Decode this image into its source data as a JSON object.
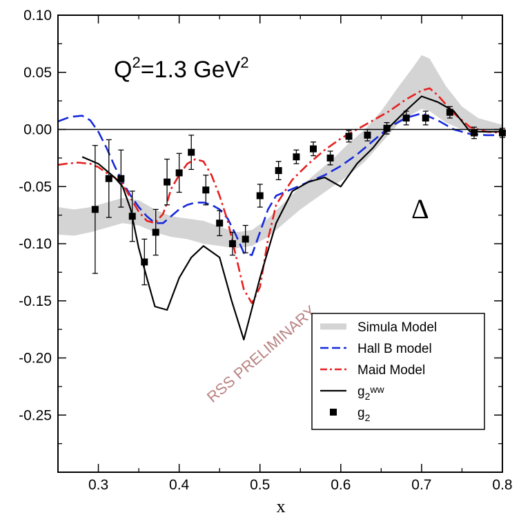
{
  "chart_data": {
    "type": "line",
    "title": "",
    "xlabel": "x",
    "ylabel": "",
    "xlim": [
      0.25,
      0.8
    ],
    "ylim": [
      -0.3,
      0.1
    ],
    "grid": false,
    "legend_position": "bottom-right",
    "x_ticks": [
      {
        "value": 0.3,
        "label": "0.3"
      },
      {
        "value": 0.4,
        "label": "0.4"
      },
      {
        "value": 0.5,
        "label": "0.5"
      },
      {
        "value": 0.6,
        "label": "0.6"
      },
      {
        "value": 0.7,
        "label": "0.7"
      },
      {
        "value": 0.8,
        "label": "0.8"
      }
    ],
    "y_ticks": [
      {
        "value": 0.1,
        "label": "0.10"
      },
      {
        "value": 0.05,
        "label": "0.05"
      },
      {
        "value": 0.0,
        "label": "0.00"
      },
      {
        "value": -0.05,
        "label": "-0.05"
      },
      {
        "value": -0.1,
        "label": "-0.10"
      },
      {
        "value": -0.15,
        "label": "-0.15"
      },
      {
        "value": -0.2,
        "label": "-0.20"
      },
      {
        "value": -0.25,
        "label": "-0.25"
      }
    ],
    "annotations": {
      "q2_main": "Q",
      "q2_sup1": "2",
      "q2_mid": "=1.3 GeV",
      "q2_sup2": "2",
      "delta": "Δ",
      "watermark": "RSS PRELIMINARY"
    },
    "colors": {
      "band": "#d4d4d4",
      "hallb": "#1428dc",
      "maid": "#e61e1e",
      "ww": "#000000",
      "data": "#000000",
      "watermark": "#b98282"
    },
    "band": {
      "name": "Simula Model",
      "x": [
        0.25,
        0.27,
        0.29,
        0.31,
        0.33,
        0.35,
        0.37,
        0.39,
        0.41,
        0.43,
        0.45,
        0.47,
        0.49,
        0.51,
        0.53,
        0.55,
        0.57,
        0.59,
        0.61,
        0.63,
        0.65,
        0.67,
        0.69,
        0.7,
        0.71,
        0.73,
        0.75,
        0.77,
        0.8
      ],
      "upper": [
        -0.068,
        -0.07,
        -0.068,
        -0.064,
        -0.06,
        -0.062,
        -0.07,
        -0.076,
        -0.078,
        -0.08,
        -0.085,
        -0.09,
        -0.088,
        -0.078,
        -0.064,
        -0.05,
        -0.038,
        -0.026,
        -0.012,
        0.0,
        0.016,
        0.036,
        0.055,
        0.065,
        0.062,
        0.038,
        0.02,
        0.01,
        0.004
      ],
      "lower": [
        -0.092,
        -0.093,
        -0.09,
        -0.086,
        -0.082,
        -0.084,
        -0.09,
        -0.094,
        -0.096,
        -0.1,
        -0.102,
        -0.104,
        -0.102,
        -0.094,
        -0.082,
        -0.07,
        -0.06,
        -0.05,
        -0.04,
        -0.028,
        -0.012,
        0.004,
        0.014,
        0.018,
        0.016,
        0.006,
        0.0,
        -0.002,
        -0.003
      ]
    },
    "series": [
      {
        "name": "Hall B model",
        "x": [
          0.25,
          0.265,
          0.28,
          0.29,
          0.3,
          0.31,
          0.32,
          0.33,
          0.34,
          0.35,
          0.36,
          0.37,
          0.38,
          0.39,
          0.4,
          0.41,
          0.42,
          0.43,
          0.44,
          0.45,
          0.46,
          0.47,
          0.48,
          0.49,
          0.5,
          0.51,
          0.52,
          0.54,
          0.56,
          0.58,
          0.6,
          0.62,
          0.64,
          0.66,
          0.68,
          0.7,
          0.72,
          0.74,
          0.76,
          0.78,
          0.8
        ],
        "y": [
          0.007,
          0.011,
          0.012,
          0.008,
          -0.002,
          -0.016,
          -0.032,
          -0.046,
          -0.058,
          -0.068,
          -0.076,
          -0.082,
          -0.082,
          -0.076,
          -0.07,
          -0.066,
          -0.064,
          -0.064,
          -0.066,
          -0.07,
          -0.078,
          -0.092,
          -0.108,
          -0.11,
          -0.09,
          -0.07,
          -0.058,
          -0.052,
          -0.046,
          -0.04,
          -0.032,
          -0.022,
          -0.01,
          0.002,
          0.01,
          0.014,
          0.008,
          0.0,
          -0.004,
          -0.005,
          -0.005
        ]
      },
      {
        "name": "Maid Model",
        "x": [
          0.25,
          0.26,
          0.275,
          0.29,
          0.3,
          0.31,
          0.32,
          0.33,
          0.34,
          0.35,
          0.36,
          0.37,
          0.38,
          0.385,
          0.39,
          0.4,
          0.41,
          0.42,
          0.43,
          0.44,
          0.45,
          0.46,
          0.47,
          0.48,
          0.49,
          0.5,
          0.51,
          0.52,
          0.54,
          0.56,
          0.58,
          0.6,
          0.62,
          0.64,
          0.66,
          0.68,
          0.7,
          0.71,
          0.72,
          0.74,
          0.76,
          0.78,
          0.8
        ],
        "y": [
          -0.031,
          -0.03,
          -0.029,
          -0.03,
          -0.033,
          -0.038,
          -0.042,
          -0.048,
          -0.06,
          -0.072,
          -0.08,
          -0.082,
          -0.074,
          -0.064,
          -0.052,
          -0.04,
          -0.03,
          -0.026,
          -0.028,
          -0.04,
          -0.058,
          -0.08,
          -0.11,
          -0.14,
          -0.152,
          -0.138,
          -0.096,
          -0.066,
          -0.044,
          -0.03,
          -0.018,
          -0.008,
          0.0,
          0.008,
          0.016,
          0.026,
          0.034,
          0.036,
          0.03,
          0.014,
          0.002,
          -0.002,
          -0.003
        ]
      },
      {
        "name": "g2ww",
        "x": [
          0.28,
          0.3,
          0.31,
          0.32,
          0.33,
          0.34,
          0.35,
          0.36,
          0.37,
          0.385,
          0.4,
          0.415,
          0.43,
          0.45,
          0.465,
          0.48,
          0.5,
          0.52,
          0.54,
          0.56,
          0.58,
          0.6,
          0.62,
          0.64,
          0.66,
          0.68,
          0.7,
          0.72,
          0.74,
          0.76,
          0.78,
          0.8
        ],
        "y": [
          -0.024,
          -0.03,
          -0.036,
          -0.042,
          -0.05,
          -0.07,
          -0.104,
          -0.13,
          -0.155,
          -0.158,
          -0.13,
          -0.112,
          -0.102,
          -0.112,
          -0.15,
          -0.184,
          -0.13,
          -0.082,
          -0.054,
          -0.046,
          -0.042,
          -0.05,
          -0.03,
          -0.016,
          0.002,
          0.016,
          0.029,
          0.024,
          0.016,
          -0.002,
          -0.002,
          -0.002
        ]
      }
    ],
    "data_points": {
      "name": "g2",
      "x": [
        0.296,
        0.313,
        0.328,
        0.342,
        0.357,
        0.371,
        0.385,
        0.4,
        0.415,
        0.433,
        0.45,
        0.466,
        0.482,
        0.5,
        0.523,
        0.545,
        0.566,
        0.587,
        0.61,
        0.633,
        0.657,
        0.681,
        0.705,
        0.735,
        0.765,
        0.8
      ],
      "y": [
        -0.07,
        -0.043,
        -0.043,
        -0.076,
        -0.116,
        -0.09,
        -0.046,
        -0.038,
        -0.02,
        -0.053,
        -0.082,
        -0.1,
        -0.096,
        -0.058,
        -0.036,
        -0.024,
        -0.017,
        -0.025,
        -0.006,
        -0.005,
        0.001,
        0.01,
        0.01,
        0.015,
        -0.003,
        -0.003
      ],
      "err": [
        0.056,
        0.034,
        0.025,
        0.022,
        0.02,
        0.02,
        0.02,
        0.017,
        0.015,
        0.013,
        0.011,
        0.01,
        0.012,
        0.01,
        0.008,
        0.006,
        0.006,
        0.006,
        0.005,
        0.005,
        0.005,
        0.006,
        0.006,
        0.005,
        0.005,
        0.004
      ]
    },
    "legend": [
      {
        "key": "band",
        "label": "Simula Model",
        "style": "band"
      },
      {
        "key": "hallb",
        "label": "Hall B model",
        "style": "dashed"
      },
      {
        "key": "maid",
        "label": "Maid Model",
        "style": "dashdot"
      },
      {
        "key": "ww",
        "label": "g",
        "sub": "2",
        "sup": "ww",
        "style": "solid"
      },
      {
        "key": "data",
        "label": "g",
        "sub": "2",
        "style": "marker"
      }
    ]
  }
}
